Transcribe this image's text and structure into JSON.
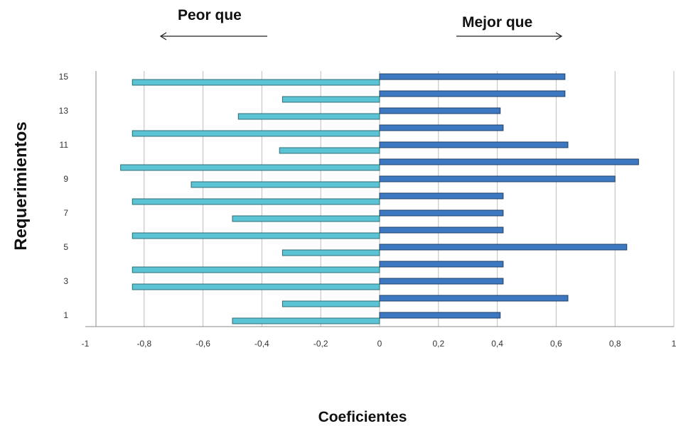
{
  "chart_data": {
    "type": "bar",
    "orientation": "horizontal",
    "xlabel": "Coeficientes",
    "ylabel": "Requerimientos",
    "xlim": [
      -1,
      1
    ],
    "x_ticks": [
      "-1",
      "-0,8",
      "-0,6",
      "-0,4",
      "-0,2",
      "0",
      "0,2",
      "0,4",
      "0,6",
      "0,8",
      "1"
    ],
    "categories": [
      "1",
      "2",
      "3",
      "4",
      "5",
      "6",
      "7",
      "8",
      "9",
      "10",
      "11",
      "12",
      "13",
      "14",
      "15"
    ],
    "y_tick_labels": [
      "1",
      "3",
      "5",
      "7",
      "9",
      "11",
      "13",
      "15"
    ],
    "grid": "vertical",
    "annotations": {
      "left_arrow_label": "Peor que",
      "right_arrow_label": "Mejor que"
    },
    "series": [
      {
        "color": "#5BC4D4",
        "values": [
          -0.5,
          -0.33,
          -0.84,
          -0.84,
          -0.33,
          -0.84,
          -0.5,
          -0.84,
          -0.64,
          -0.88,
          -0.34,
          -0.84,
          -0.48,
          -0.33,
          -0.84
        ]
      },
      {
        "color": "#3C78C0",
        "values": [
          0.41,
          0.64,
          0.42,
          0.42,
          0.84,
          0.42,
          0.42,
          0.42,
          0.8,
          0.88,
          0.64,
          0.42,
          0.41,
          0.63,
          0.63
        ]
      }
    ]
  }
}
